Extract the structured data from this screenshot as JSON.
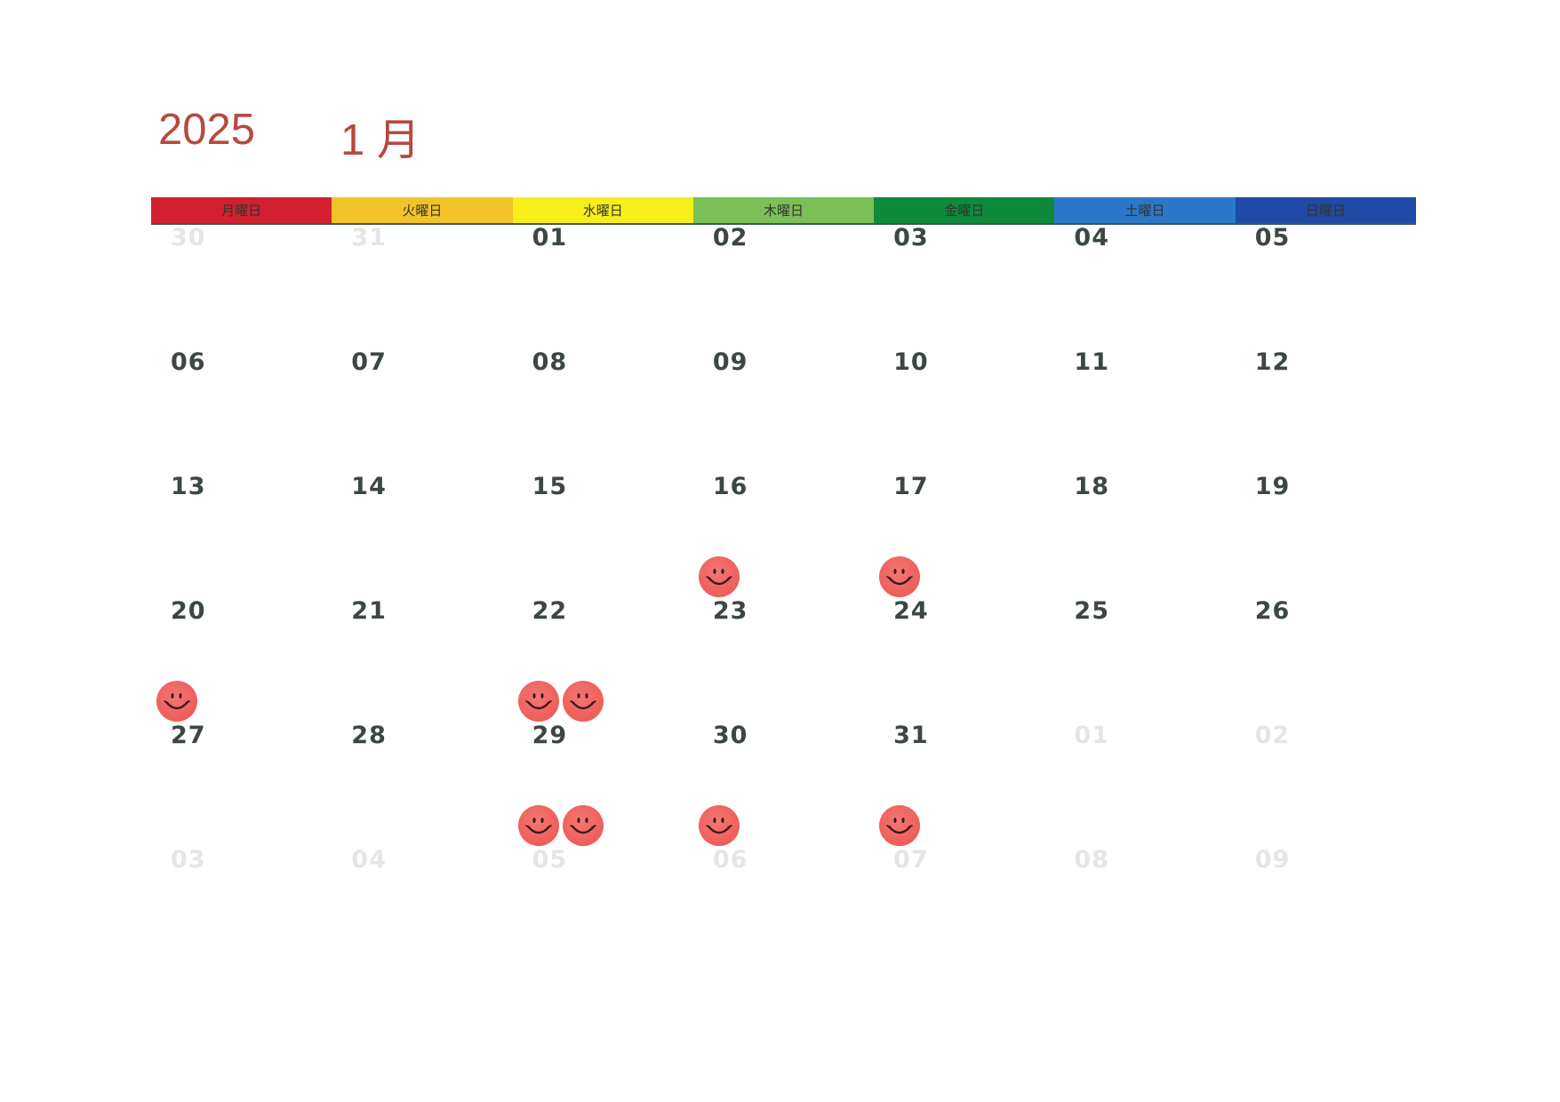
{
  "header": {
    "year": "2025",
    "month": "1 月"
  },
  "weekdays": [
    {
      "label": "月曜日",
      "color": "#d3202f"
    },
    {
      "label": "火曜日",
      "color": "#f0c428"
    },
    {
      "label": "水曜日",
      "color": "#f7ee1c"
    },
    {
      "label": "木曜日",
      "color": "#7bbf57"
    },
    {
      "label": "金曜日",
      "color": "#0d8a3b"
    },
    {
      "label": "土曜日",
      "color": "#2b78c9"
    },
    {
      "label": "日曜日",
      "color": "#1f4aa5"
    }
  ],
  "weeks": [
    [
      {
        "day": "30",
        "faded": true,
        "stamps": 0
      },
      {
        "day": "31",
        "faded": true,
        "stamps": 0
      },
      {
        "day": "01",
        "faded": false,
        "stamps": 0
      },
      {
        "day": "02",
        "faded": false,
        "stamps": 0
      },
      {
        "day": "03",
        "faded": false,
        "stamps": 0
      },
      {
        "day": "04",
        "faded": false,
        "stamps": 0
      },
      {
        "day": "05",
        "faded": false,
        "stamps": 0
      }
    ],
    [
      {
        "day": "06",
        "faded": false,
        "stamps": 0
      },
      {
        "day": "07",
        "faded": false,
        "stamps": 0
      },
      {
        "day": "08",
        "faded": false,
        "stamps": 0
      },
      {
        "day": "09",
        "faded": false,
        "stamps": 0
      },
      {
        "day": "10",
        "faded": false,
        "stamps": 0
      },
      {
        "day": "11",
        "faded": false,
        "stamps": 0
      },
      {
        "day": "12",
        "faded": false,
        "stamps": 0
      }
    ],
    [
      {
        "day": "13",
        "faded": false,
        "stamps": 0
      },
      {
        "day": "14",
        "faded": false,
        "stamps": 0
      },
      {
        "day": "15",
        "faded": false,
        "stamps": 0
      },
      {
        "day": "16",
        "faded": false,
        "stamps": 1
      },
      {
        "day": "17",
        "faded": false,
        "stamps": 1
      },
      {
        "day": "18",
        "faded": false,
        "stamps": 0
      },
      {
        "day": "19",
        "faded": false,
        "stamps": 0
      }
    ],
    [
      {
        "day": "20",
        "faded": false,
        "stamps": 1
      },
      {
        "day": "21",
        "faded": false,
        "stamps": 0
      },
      {
        "day": "22",
        "faded": false,
        "stamps": 2
      },
      {
        "day": "23",
        "faded": false,
        "stamps": 0
      },
      {
        "day": "24",
        "faded": false,
        "stamps": 0
      },
      {
        "day": "25",
        "faded": false,
        "stamps": 0
      },
      {
        "day": "26",
        "faded": false,
        "stamps": 0
      }
    ],
    [
      {
        "day": "27",
        "faded": false,
        "stamps": 0
      },
      {
        "day": "28",
        "faded": false,
        "stamps": 0
      },
      {
        "day": "29",
        "faded": false,
        "stamps": 2
      },
      {
        "day": "30",
        "faded": false,
        "stamps": 1
      },
      {
        "day": "31",
        "faded": false,
        "stamps": 1
      },
      {
        "day": "01",
        "faded": true,
        "stamps": 0
      },
      {
        "day": "02",
        "faded": true,
        "stamps": 0
      }
    ],
    [
      {
        "day": "03",
        "faded": true,
        "stamps": 0
      },
      {
        "day": "04",
        "faded": true,
        "stamps": 0
      },
      {
        "day": "05",
        "faded": true,
        "stamps": 0
      },
      {
        "day": "06",
        "faded": true,
        "stamps": 0
      },
      {
        "day": "07",
        "faded": true,
        "stamps": 0
      },
      {
        "day": "08",
        "faded": true,
        "stamps": 0
      },
      {
        "day": "09",
        "faded": true,
        "stamps": 0
      }
    ]
  ]
}
